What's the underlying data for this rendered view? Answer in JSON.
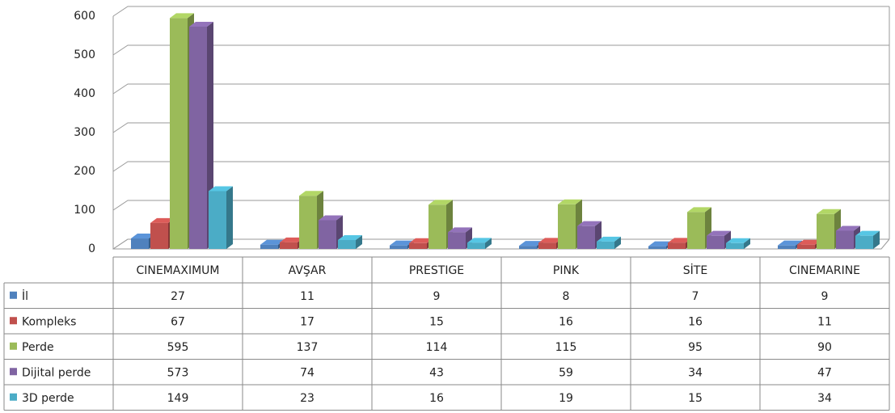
{
  "chart_data": {
    "type": "bar",
    "categories": [
      "CINEMAXIMUM",
      "AVŞAR",
      "PRESTIGE",
      "PINK",
      "SİTE",
      "CINEMARINE"
    ],
    "series": [
      {
        "name": "İl",
        "color": "#4f81bd",
        "values": [
          27,
          11,
          9,
          8,
          7,
          9
        ]
      },
      {
        "name": "Kompleks",
        "color": "#c0504d",
        "values": [
          67,
          17,
          15,
          16,
          16,
          11
        ]
      },
      {
        "name": "Perde",
        "color": "#9bbb59",
        "values": [
          595,
          137,
          114,
          115,
          95,
          90
        ]
      },
      {
        "name": "Dijital perde",
        "color": "#8064a2",
        "values": [
          573,
          74,
          43,
          59,
          34,
          47
        ]
      },
      {
        "name": "3D perde",
        "color": "#4bacc6",
        "values": [
          149,
          23,
          16,
          19,
          15,
          34
        ]
      }
    ],
    "ylim": [
      0,
      600
    ],
    "yticks": [
      0,
      100,
      200,
      300,
      400,
      500,
      600
    ],
    "grid": true
  }
}
